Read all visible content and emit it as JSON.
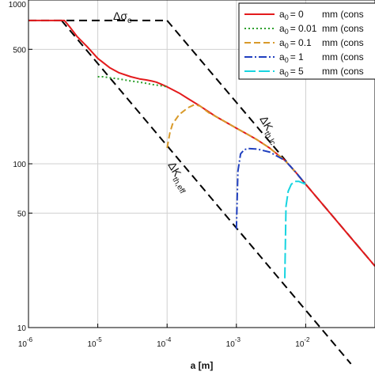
{
  "chart_data": {
    "type": "line",
    "title": "",
    "xlabel": "a [m]",
    "ylabel": "",
    "x_scale": "log",
    "y_scale": "log",
    "xlim": [
      1e-06,
      0.1
    ],
    "ylim": [
      10,
      1000
    ],
    "grid": true,
    "legend_position": "top-right",
    "x_ticks": [
      {
        "value": 1e-06,
        "base": "10",
        "exp": "-6"
      },
      {
        "value": 1e-05,
        "base": "10",
        "exp": "-5"
      },
      {
        "value": 0.0001,
        "base": "10",
        "exp": "-4"
      },
      {
        "value": 0.001,
        "base": "10",
        "exp": "-3"
      },
      {
        "value": 0.01,
        "base": "10",
        "exp": "-2"
      }
    ],
    "y_ticks": [
      {
        "value": 1000,
        "label": "1000"
      },
      {
        "value": 500,
        "label": "500"
      },
      {
        "value": 100,
        "label": "100"
      },
      {
        "value": 50,
        "label": "50"
      },
      {
        "value": 10,
        "label": "10"
      }
    ],
    "annotations": [
      {
        "base": "Δσ",
        "sub": "e"
      },
      {
        "base": "ΔK",
        "sub": "th,lc"
      },
      {
        "base": "ΔK",
        "sub": "th,eff"
      }
    ],
    "boundaries": [
      {
        "name": "delta_sigma_e",
        "color": "#000000",
        "dash": "10,6",
        "x": [
          1e-06,
          0.0001
        ],
        "y": [
          750,
          750
        ]
      },
      {
        "name": "delta_K_th_lc",
        "color": "#000000",
        "dash": "10,6",
        "x": [
          0.0001,
          0.1
        ],
        "y": [
          750,
          23.7
        ]
      },
      {
        "name": "delta_K_th_eff",
        "color": "#000000",
        "dash": "10,6",
        "x": [
          3e-06,
          0.045
        ],
        "y": [
          750,
          6
        ]
      }
    ],
    "series": [
      {
        "name": "a0 = 0 mm (cons",
        "legend_main": "a",
        "legend_sub": "0",
        "legend_value": "= 0",
        "legend_unit": "mm (cons",
        "color": "#e31a1c",
        "dash": "",
        "x": [
          1e-06,
          3.3e-06,
          4e-06,
          5e-06,
          7e-06,
          1e-05,
          1.5e-05,
          2e-05,
          3e-05,
          4e-05,
          5e-05,
          6e-05,
          7e-05,
          8e-05,
          0.0001,
          0.00015,
          0.0002,
          0.0003,
          0.0005,
          0.0007,
          0.001,
          0.0015,
          0.002,
          0.003,
          0.005,
          0.007,
          0.01,
          0.02,
          0.05,
          0.1
        ],
        "y": [
          750,
          750,
          680,
          600,
          520,
          440,
          385,
          360,
          340,
          330,
          325,
          320,
          315,
          308,
          295,
          270,
          250,
          225,
          195,
          180,
          165,
          150,
          140,
          125,
          105,
          90,
          75,
          53,
          33.5,
          23.7
        ]
      },
      {
        "name": "a0 = 0.01 mm (cons",
        "legend_main": "a",
        "legend_sub": "0",
        "legend_value": "= 0.01",
        "legend_unit": "mm (cons",
        "color": "#2ca02c",
        "dash": "2,3",
        "x": [
          1e-05,
          1.2e-05,
          1.5e-05,
          2e-05,
          3e-05,
          4e-05,
          5e-05,
          6e-05,
          8e-05,
          0.0001
        ],
        "y": [
          340,
          340,
          335,
          330,
          320,
          315,
          310,
          305,
          300,
          295
        ]
      },
      {
        "name": "a0 = 0.1 mm (cons",
        "legend_main": "a",
        "legend_sub": "0",
        "legend_value": "= 0.1",
        "legend_unit": "mm (cons",
        "color": "#d89a2a",
        "dash": "8,4",
        "x": [
          0.0001,
          0.0001,
          0.00011,
          0.00012,
          0.00015,
          0.0002,
          0.00025,
          0.0003,
          0.0004,
          0.0005,
          0.0007,
          0.001,
          0.0015,
          0.002,
          0.003,
          0.005,
          0.007,
          0.01
        ],
        "y": [
          125,
          125,
          155,
          175,
          200,
          220,
          230,
          225,
          205,
          195,
          180,
          165,
          150,
          140,
          125,
          105,
          90,
          75
        ]
      },
      {
        "name": "a0 = 1 mm (cons",
        "legend_main": "a",
        "legend_sub": "0",
        "legend_value": "= 1",
        "legend_unit": "mm (cons",
        "color": "#1f3fbf",
        "dash": "10,3,2,3",
        "x": [
          0.001,
          0.001,
          0.00105,
          0.00115,
          0.0013,
          0.0015,
          0.002,
          0.003,
          0.005,
          0.007,
          0.01
        ],
        "y": [
          40,
          40,
          90,
          115,
          122,
          124,
          123,
          118,
          105,
          90,
          75
        ]
      },
      {
        "name": "a0 = 5 mm (cons",
        "legend_main": "a",
        "legend_sub": "0",
        "legend_value": "= 5",
        "legend_unit": "mm (cons",
        "color": "#17d4e0",
        "dash": "14,4",
        "x": [
          0.005,
          0.005,
          0.0052,
          0.0056,
          0.0062,
          0.007,
          0.008,
          0.01
        ],
        "y": [
          20,
          20,
          55,
          68,
          75,
          78,
          78,
          75
        ]
      }
    ]
  }
}
